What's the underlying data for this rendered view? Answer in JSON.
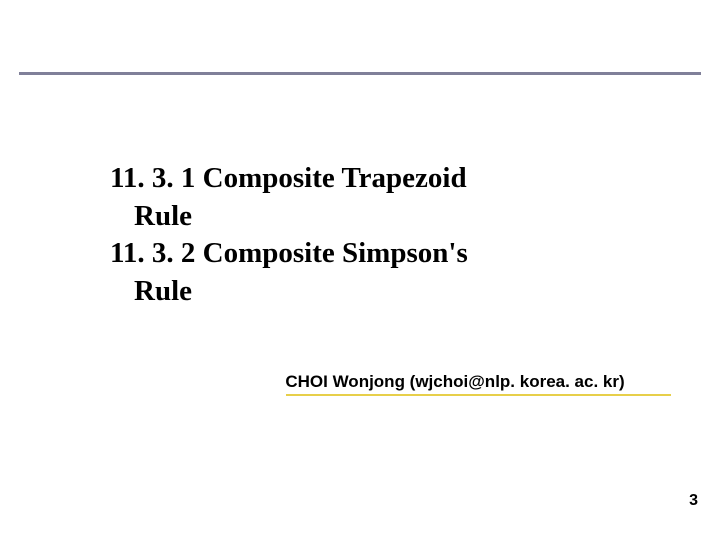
{
  "headings": {
    "section1_number": "11. 3. 1 Composite Trapezoid",
    "section1_word": "Rule",
    "section2_number": "11. 3. 2 Composite Simpson's",
    "section2_word": "Rule"
  },
  "author": {
    "text": "CHOI Wonjong (wjchoi@nlp. korea. ac. kr)"
  },
  "page": {
    "number": "3"
  },
  "styling": {
    "rule_color": "#808099",
    "underline_color": "#e7cf4a",
    "heading_fontsize": 29,
    "author_fontsize": 17,
    "background_color": "#ffffff"
  }
}
